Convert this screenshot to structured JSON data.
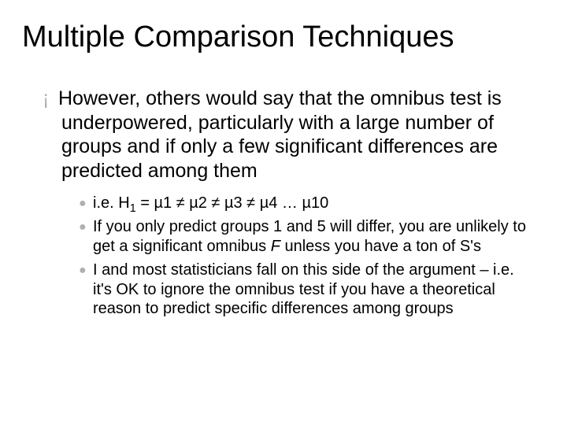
{
  "title": "Multiple Comparison Techniques",
  "main": {
    "bullet_glyph": "¡",
    "text": "However, others would say that the omnibus test is underpowered, particularly with a large number of groups and if only a few significant differences are predicted among them"
  },
  "sub": {
    "dot_glyph": "●",
    "items": [
      {
        "prefix": "i.e. H",
        "sub": "1",
        "rest": " = µ1 ≠ µ2 ≠ µ3 ≠ µ4 … µ10"
      },
      {
        "pre": "If you only predict groups 1 and 5 will differ, you are unlikely to get a significant omnibus ",
        "em": "F",
        "post": " unless you have a ton of S's"
      },
      {
        "text": "I and most statisticians fall on this side of the argument – i.e. it's OK to ignore the omnibus test if you have a theoretical reason to predict specific differences among groups"
      }
    ]
  },
  "colors": {
    "bullet": "#b0b0b0",
    "text": "#000000",
    "background": "#ffffff"
  },
  "fonts": {
    "title_size": 38,
    "body_size": 25,
    "sub_size": 20
  }
}
